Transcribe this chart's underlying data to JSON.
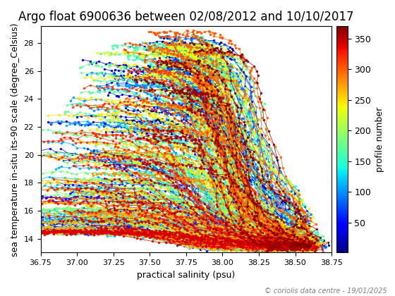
{
  "title": "Argo float 6900636 between 02/08/2012 and 10/10/2017",
  "xlabel": "practical salinity (psu)",
  "ylabel": "sea temperature in-situ its-90 scale (degree_Celsius)",
  "cbar_label": "profile number",
  "xlim": [
    36.75,
    38.75
  ],
  "ylim": [
    13.0,
    29.2
  ],
  "n_profiles": 370,
  "colormap": "jet",
  "copyright": "© coriolis data centre - 19/01/2025",
  "title_fontsize": 12,
  "label_fontsize": 9,
  "cbar_tick_fontsize": 9,
  "cbar_ticks": [
    50,
    100,
    150,
    200,
    250,
    300,
    350
  ]
}
